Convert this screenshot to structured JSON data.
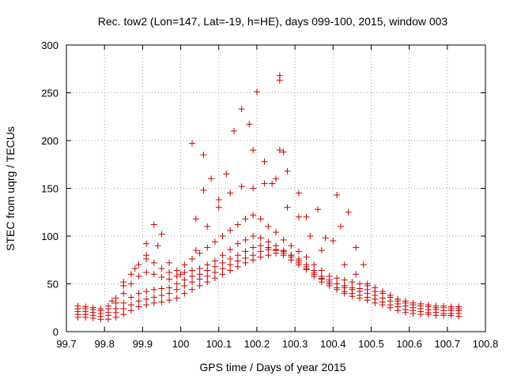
{
  "chart_data": {
    "type": "scatter",
    "title": "Rec. tow2 (Lon=147, Lat=-19, h=HE), days 099-100, 2015, window 003",
    "xlabel": "GPS time / Days of year 2015",
    "ylabel": "STEC from uqrg / TECUs",
    "xlim": [
      99.7,
      100.8
    ],
    "ylim": [
      0,
      300
    ],
    "xticks": [
      "99.7",
      "99.8",
      "99.9",
      "100",
      "100.1",
      "100.2",
      "100.3",
      "100.4",
      "100.5",
      "100.6",
      "100.7",
      "100.8"
    ],
    "yticks": [
      "0",
      "50",
      "100",
      "150",
      "200",
      "250",
      "300"
    ],
    "grid": true,
    "marker": "plus",
    "color": "#cc0000",
    "series": [
      {
        "x": [
          99.73,
          99.75,
          99.77,
          99.79,
          99.81,
          99.83,
          99.85,
          99.87,
          99.89,
          99.91,
          99.93,
          99.95,
          99.97,
          99.99,
          100.01,
          100.03,
          100.05,
          100.07,
          100.09,
          100.11,
          100.13,
          100.15,
          100.17,
          100.19,
          100.21,
          100.23,
          100.25,
          100.27,
          100.29,
          100.31,
          100.33,
          100.35,
          100.37,
          100.39,
          100.41,
          100.43,
          100.45,
          100.47,
          100.49,
          100.51,
          100.53,
          100.55,
          100.57,
          100.59,
          100.61,
          100.63,
          100.65,
          100.67,
          100.69,
          100.71,
          100.73
        ],
        "y": [
          15,
          15,
          14,
          13,
          13,
          15,
          18,
          22,
          26,
          28,
          30,
          31,
          33,
          35,
          40,
          44,
          48,
          52,
          56,
          60,
          64,
          68,
          72,
          75,
          78,
          80,
          82,
          80,
          75,
          70,
          65,
          58,
          52,
          48,
          44,
          40,
          37,
          35,
          33,
          30,
          28,
          25,
          22,
          20,
          19,
          18,
          18,
          17,
          17,
          17,
          16
        ]
      },
      {
        "x": [
          99.73,
          99.75,
          99.77,
          99.79,
          99.81,
          99.83,
          99.85,
          99.87,
          99.89,
          99.91,
          99.93,
          99.95,
          99.97,
          99.99,
          100.01,
          100.03,
          100.05,
          100.07,
          100.09,
          100.11,
          100.13,
          100.15,
          100.17,
          100.19,
          100.21,
          100.23,
          100.25,
          100.27,
          100.29,
          100.31,
          100.33,
          100.35,
          100.37,
          100.39,
          100.41,
          100.43,
          100.45,
          100.47,
          100.49,
          100.51,
          100.53,
          100.55,
          100.57,
          100.59,
          100.61,
          100.63,
          100.65,
          100.67,
          100.69,
          100.71,
          100.73
        ],
        "y": [
          18,
          18,
          17,
          16,
          17,
          20,
          24,
          28,
          32,
          34,
          36,
          38,
          40,
          44,
          48,
          52,
          55,
          58,
          62,
          66,
          70,
          74,
          77,
          80,
          84,
          86,
          85,
          82,
          78,
          72,
          66,
          60,
          55,
          50,
          46,
          42,
          40,
          38,
          36,
          34,
          31,
          28,
          26,
          23,
          22,
          21,
          20,
          20,
          19,
          19,
          19
        ]
      },
      {
        "x": [
          99.73,
          99.75,
          99.77,
          99.79,
          99.81,
          99.83,
          99.85,
          99.87,
          99.89,
          99.91,
          99.93,
          99.95,
          99.97,
          99.99,
          100.01,
          100.03,
          100.05,
          100.07,
          100.09,
          100.11,
          100.13,
          100.15,
          100.17,
          100.19,
          100.21,
          100.23,
          100.25,
          100.27,
          100.29,
          100.31,
          100.33,
          100.35,
          100.37,
          100.39,
          100.41,
          100.43,
          100.45,
          100.47,
          100.49,
          100.51,
          100.53,
          100.55,
          100.57,
          100.59,
          100.61,
          100.63,
          100.65,
          100.67,
          100.69,
          100.71,
          100.73
        ],
        "y": [
          21,
          21,
          20,
          19,
          20,
          24,
          30,
          36,
          40,
          42,
          44,
          45,
          46,
          50,
          54,
          58,
          60,
          64,
          68,
          72,
          76,
          80,
          84,
          88,
          90,
          88,
          86,
          84,
          80,
          76,
          70,
          64,
          58,
          54,
          50,
          46,
          44,
          42,
          40,
          38,
          35,
          32,
          29,
          27,
          25,
          24,
          23,
          23,
          22,
          22,
          22
        ]
      },
      {
        "x": [
          99.73,
          99.75,
          99.77,
          99.79,
          99.81,
          99.83,
          99.85,
          99.87,
          99.89,
          99.91,
          99.93,
          99.95,
          99.97,
          99.99,
          100.01,
          100.03,
          100.05,
          100.07,
          100.09,
          100.11,
          100.13,
          100.15,
          100.17,
          100.19,
          100.21,
          100.23,
          100.25,
          100.27,
          100.29,
          100.31,
          100.33,
          100.35,
          100.37,
          100.39,
          100.41,
          100.43,
          100.45,
          100.47,
          100.49,
          100.51,
          100.53,
          100.55,
          100.57,
          100.59,
          100.61,
          100.63,
          100.65,
          100.67,
          100.69,
          100.71,
          100.73
        ],
        "y": [
          24,
          24,
          23,
          22,
          24,
          30,
          40,
          50,
          58,
          62,
          60,
          57,
          55,
          58,
          62,
          64,
          66,
          70,
          74,
          80,
          86,
          92,
          96,
          100,
          98,
          94,
          90,
          85,
          80,
          74,
          68,
          62,
          56,
          52,
          50,
          48,
          46,
          45,
          44,
          42,
          40,
          36,
          32,
          30,
          28,
          27,
          26,
          25,
          25,
          24,
          24
        ]
      },
      {
        "x": [
          99.73,
          99.75,
          99.77,
          99.79,
          99.81,
          99.83,
          99.85,
          99.87,
          99.89,
          99.91,
          99.93,
          99.95,
          99.97,
          99.99,
          100.01,
          100.03,
          100.05,
          100.07,
          100.09,
          100.11,
          100.13,
          100.15,
          100.17,
          100.19,
          100.21,
          100.23,
          100.25,
          100.27,
          100.29,
          100.31,
          100.33,
          100.35,
          100.37,
          100.39,
          100.41,
          100.43,
          100.45,
          100.47,
          100.49,
          100.51,
          100.53,
          100.55,
          100.57,
          100.59,
          100.61,
          100.63,
          100.65,
          100.67,
          100.69,
          100.71,
          100.73
        ],
        "y": [
          27,
          26,
          25,
          24,
          27,
          35,
          48,
          60,
          70,
          76,
          72,
          66,
          62,
          64,
          70,
          76,
          82,
          88,
          94,
          100,
          106,
          112,
          118,
          122,
          118,
          110,
          104,
          96,
          90,
          84,
          78,
          70,
          64,
          58,
          56,
          54,
          52,
          50,
          48,
          46,
          42,
          38,
          34,
          32,
          30,
          29,
          28,
          27,
          27,
          26,
          26
        ]
      },
      {
        "x": [
          99.82,
          99.85,
          99.88,
          99.91,
          99.94,
          99.97,
          100.0,
          100.04,
          100.07,
          100.1,
          100.13,
          100.16,
          100.19,
          100.22,
          100.25,
          100.28,
          100.31,
          100.34,
          100.37,
          100.4,
          100.43,
          100.46,
          100.49
        ],
        "y": [
          32,
          52,
          66,
          80,
          90,
          72,
          60,
          85,
          110,
          130,
          145,
          152,
          150,
          155,
          160,
          130,
          120,
          100,
          85,
          95,
          70,
          60,
          50
        ]
      },
      {
        "x": [
          99.91,
          99.93,
          99.95,
          100.04,
          100.06,
          100.08,
          100.1,
          100.12,
          100.14,
          100.16,
          100.18,
          100.2,
          100.22,
          100.24,
          100.26,
          100.28,
          100.31,
          100.33,
          100.36,
          100.38,
          100.41,
          100.42,
          100.44,
          100.46,
          100.48
        ],
        "y": [
          92,
          112,
          102,
          118,
          148,
          160,
          138,
          165,
          210,
          233,
          217,
          251,
          178,
          155,
          190,
          168,
          145,
          120,
          128,
          98,
          143,
          110,
          125,
          88,
          70
        ]
      },
      {
        "x": [
          100.03,
          100.06,
          100.19,
          100.26,
          100.26,
          100.27
        ],
        "y": [
          197,
          185,
          190,
          263,
          268,
          188
        ]
      }
    ]
  }
}
